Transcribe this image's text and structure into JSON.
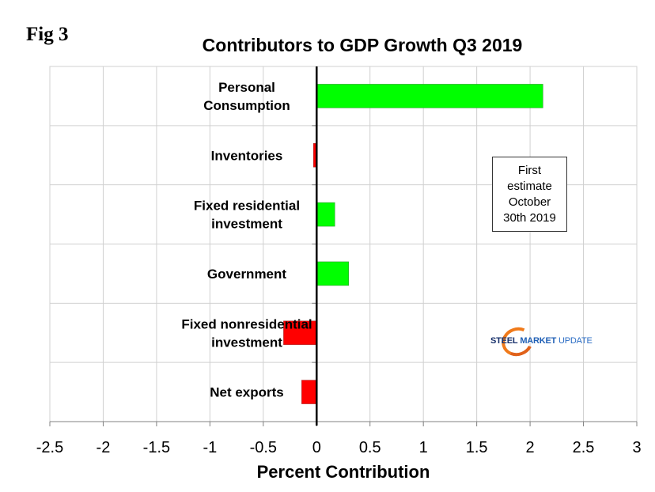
{
  "figure_label": "Fig 3",
  "annotation": "First\nestimate\nOctober\n30th 2019",
  "logo": {
    "word1": "STEEL",
    "word2": "MARKET",
    "word3": "UPDATE"
  },
  "colors": {
    "positive": "#00ff00",
    "negative": "#ff0000",
    "grid": "#d0d0d0",
    "axis": "#000000"
  },
  "chart_data": {
    "type": "bar",
    "orientation": "horizontal",
    "title": "Contributors to GDP Growth Q3 2019",
    "xlabel": "Percent Contribution",
    "ylabel": "",
    "categories": [
      "Personal Consumption",
      "Inventories",
      "Fixed residential investment",
      "Government",
      "Fixed nonresidential investment",
      "Net exports"
    ],
    "category_label_lines": [
      [
        "Personal",
        "Consumption"
      ],
      [
        "Inventories"
      ],
      [
        "Fixed residential",
        "investment"
      ],
      [
        "Government"
      ],
      [
        "Fixed nonresidential",
        "investment"
      ],
      [
        "Net exports"
      ]
    ],
    "values": [
      2.12,
      -0.03,
      0.17,
      0.3,
      -0.31,
      -0.14
    ],
    "xlim": [
      -2.5,
      3
    ],
    "xticks": [
      -2.5,
      -2,
      -1.5,
      -1,
      -0.5,
      0,
      0.5,
      1,
      1.5,
      2,
      2.5,
      3
    ],
    "xtick_labels": [
      "-2.5",
      "-2",
      "-1.5",
      "-1",
      "-0.5",
      "0",
      "0.5",
      "1",
      "1.5",
      "2",
      "2.5",
      "3"
    ],
    "grid": true,
    "legend": "none"
  }
}
